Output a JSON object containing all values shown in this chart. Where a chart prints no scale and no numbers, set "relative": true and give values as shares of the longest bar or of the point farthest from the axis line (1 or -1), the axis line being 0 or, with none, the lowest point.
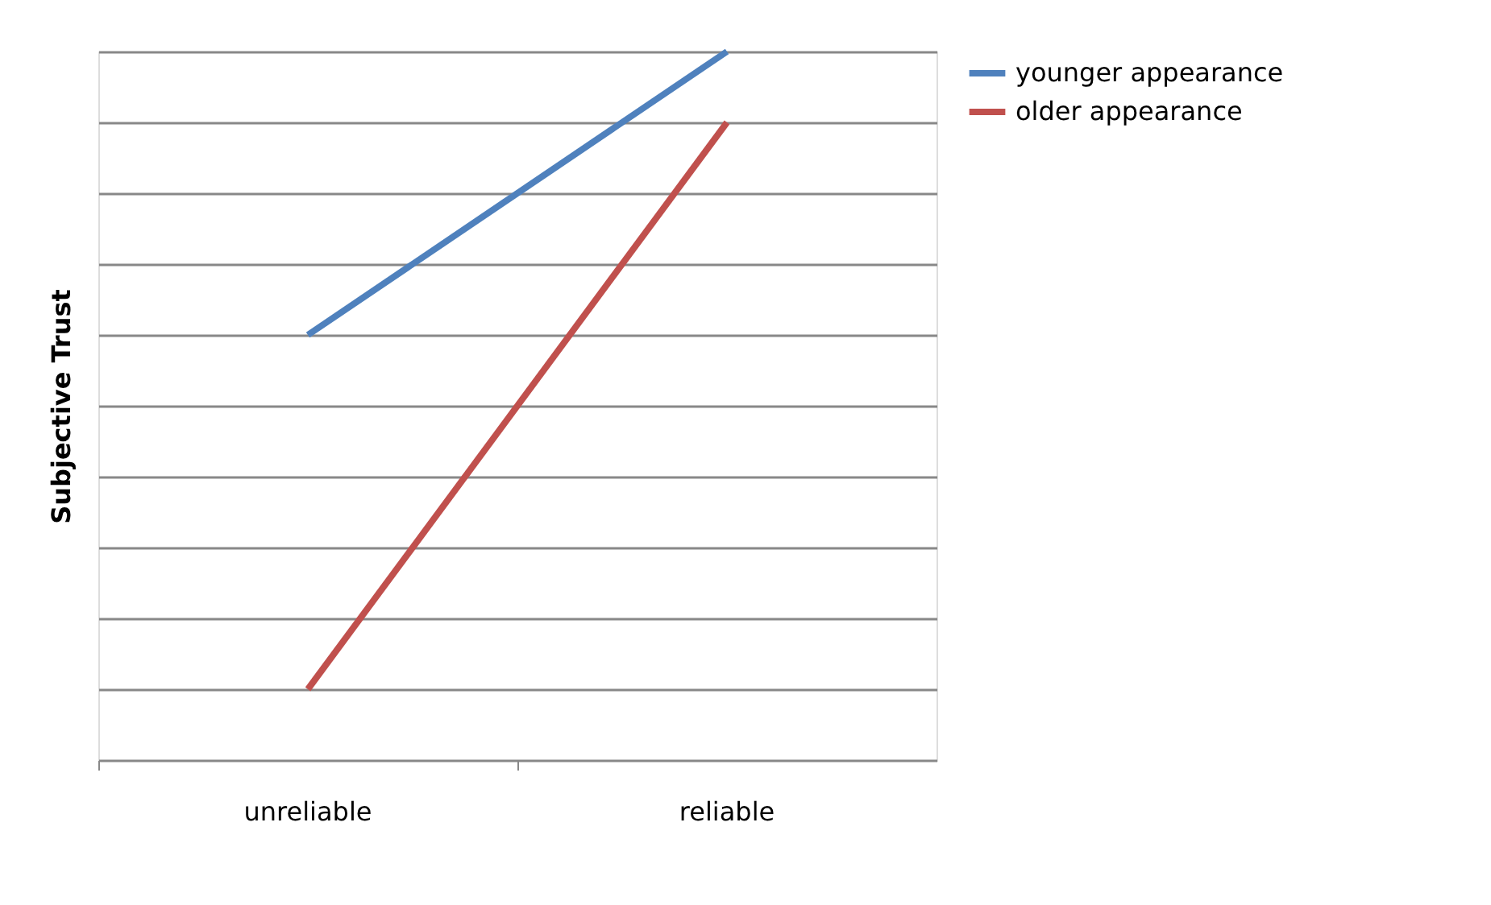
{
  "chart_data": {
    "type": "line",
    "ylabel": "Subjective Trust",
    "categories": [
      "unreliable",
      "reliable"
    ],
    "relative": true,
    "grid": "y",
    "legend": "right",
    "line_style": "solid",
    "marker": "none",
    "series": [
      {
        "name": "younger appearance",
        "color": "#4f81bd",
        "values": [
          0.6,
          1
        ]
      },
      {
        "name": "older appearance",
        "color": "#c0504d",
        "values": [
          0.1,
          0.9
        ]
      }
    ]
  }
}
